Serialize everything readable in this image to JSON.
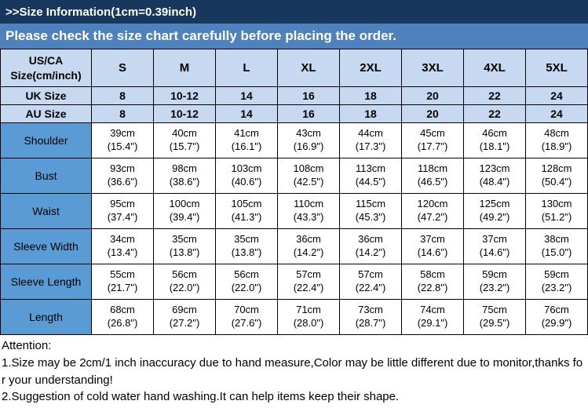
{
  "page": {
    "title": ">>Size Information(1cm=0.39inch)",
    "subtitle": "Please check the size chart carefully before placing the order."
  },
  "size_table": {
    "header_rows": [
      {
        "label": "US/CA\nSize(cm/inch)",
        "values": [
          "S",
          "M",
          "L",
          "XL",
          "2XL",
          "3XL",
          "4XL",
          "5XL"
        ]
      },
      {
        "label": "UK Size",
        "values": [
          "8",
          "10-12",
          "14",
          "16",
          "18",
          "20",
          "22",
          "24"
        ]
      },
      {
        "label": "AU Size",
        "values": [
          "8",
          "10-12",
          "14",
          "16",
          "18",
          "20",
          "22",
          "24"
        ]
      }
    ],
    "measurement_rows": [
      {
        "label": "Shoulder",
        "values": [
          "39cm\n(15.4\")",
          "40cm\n(15.7\")",
          "41cm\n(16.1\")",
          "43cm\n(16.9\")",
          "44cm\n(17.3\")",
          "45cm\n(17.7\")",
          "46cm\n(18.1\")",
          "48cm\n(18.9\")"
        ]
      },
      {
        "label": "Bust",
        "values": [
          "93cm\n(36.6\")",
          "98cm\n(38.6\")",
          "103cm\n(40.6\")",
          "108cm\n(42.5\")",
          "113cm\n(44.5\")",
          "118cm\n(46.5\")",
          "123cm\n(48.4\")",
          "128cm\n(50.4\")"
        ]
      },
      {
        "label": "Waist",
        "values": [
          "95cm\n(37.4\")",
          "100cm\n(39.4\")",
          "105cm\n(41.3\")",
          "110cm\n(43.3\")",
          "115cm\n(45.3\")",
          "120cm\n(47.2\")",
          "125cm\n(49.2\")",
          "130cm\n(51.2\")"
        ]
      },
      {
        "label": "Sleeve Width",
        "values": [
          "34cm\n(13.4\")",
          "35cm\n(13.8\")",
          "35cm\n(13.8\")",
          "36cm\n(14.2\")",
          "36cm\n(14.2\")",
          "37cm\n(14.6\")",
          "37cm\n(14.6\")",
          "38cm\n(15.0\")"
        ]
      },
      {
        "label": "Sleeve Length",
        "values": [
          "55cm\n(21.7\")",
          "56cm\n(22.0\")",
          "56cm\n(22.0\")",
          "57cm\n(22.4\")",
          "57cm\n(22.4\")",
          "58cm\n(22.8\")",
          "59cm\n(23.2\")",
          "59cm\n(23.2\")"
        ]
      },
      {
        "label": "Length",
        "values": [
          "68cm\n(26.8\")",
          "69cm\n(27.2\")",
          "70cm\n(27.6\")",
          "71cm\n(28.0\")",
          "73cm\n(28.7\")",
          "74cm\n(29.1\")",
          "75cm\n(29.5\")",
          "76cm\n(29.9\")"
        ]
      }
    ]
  },
  "attention": {
    "heading": "Attention:",
    "notes": [
      "1.Size may be 2cm/1 inch inaccuracy due to hand measure,Color may be little different due to monitor,thanks for your understanding!",
      "2.Suggestion of cold water hand washing.It can help items keep their shape."
    ]
  },
  "colors": {
    "title_bar": "#17375D",
    "subtitle_bar": "#4F81BD",
    "header_row_bg": "#C6D9F1",
    "label_column_bg": "#5B9BD5"
  }
}
